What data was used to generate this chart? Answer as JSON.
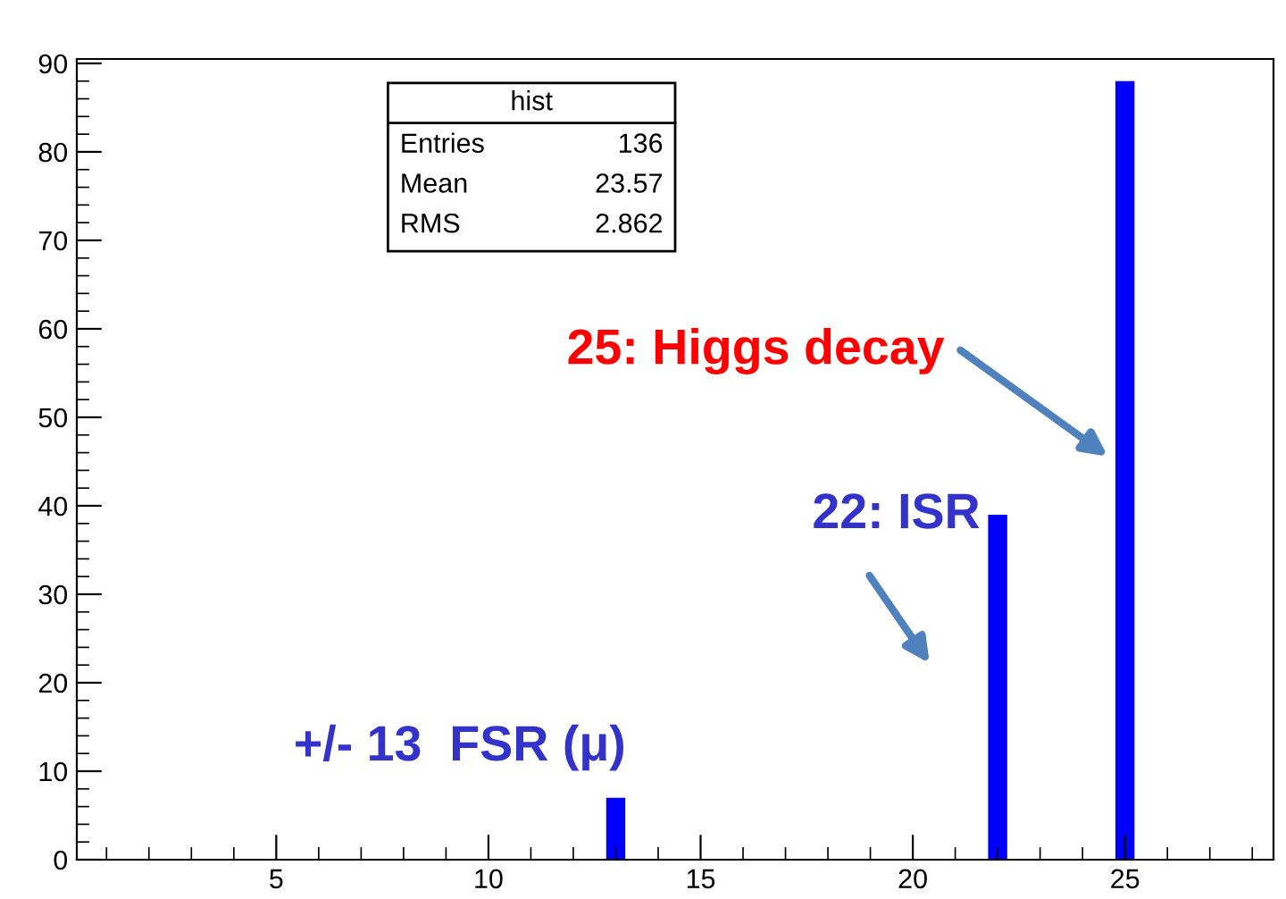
{
  "chart_data": {
    "type": "bar",
    "x": [
      13,
      22,
      25
    ],
    "values": [
      7,
      39,
      88
    ],
    "color": "#0000ff",
    "xlim": [
      0.3,
      28.5
    ],
    "xticks": [
      5,
      10,
      15,
      20,
      25
    ],
    "ylim": [
      0,
      90.5
    ],
    "yticks": [
      0,
      10,
      20,
      30,
      40,
      50,
      60,
      70,
      80,
      90
    ],
    "grid": false,
    "legend": false,
    "annotations": [
      "hist",
      "Entries",
      "136",
      "Mean",
      "23.57",
      "RMS",
      "2.862",
      "25: Higgs decay",
      "22: ISR",
      "+/- 13  FSR (μ)"
    ]
  }
}
